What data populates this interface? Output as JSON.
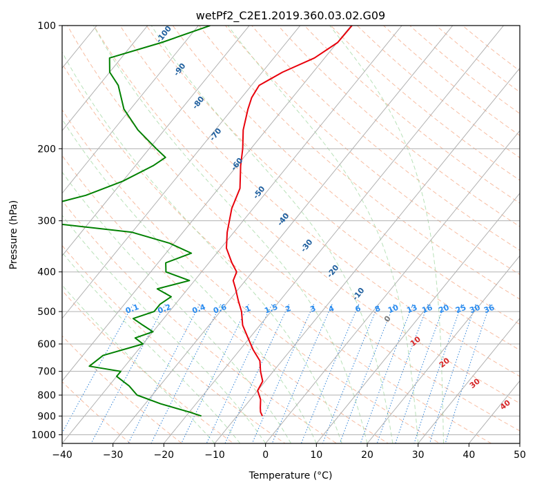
{
  "chart_data": {
    "type": "line",
    "title": "wetPf2_C2E1.2019.360.03.02.G09",
    "xlabel": "Temperature (°C)",
    "ylabel": "Pressure (hPa)",
    "xlim": [
      -40,
      50
    ],
    "ylim": [
      1050,
      100
    ],
    "y_scale": "log",
    "x_ticks": [
      -40,
      -30,
      -20,
      -10,
      0,
      10,
      20,
      30,
      40,
      50
    ],
    "x_tick_labels": [
      "−40",
      "−30",
      "−20",
      "−10",
      "0",
      "10",
      "20",
      "30",
      "40",
      "50"
    ],
    "y_ticks": [
      100,
      200,
      300,
      400,
      500,
      600,
      700,
      800,
      900,
      1000
    ],
    "y_tick_labels": [
      "100",
      "200",
      "300",
      "400",
      "500",
      "600",
      "700",
      "800",
      "900",
      "1000"
    ],
    "grid": true,
    "colors": {
      "temperature": "#e8000b",
      "dewpoint": "#008000",
      "isotherm": "#b0b0b0",
      "dry_adiabat": "#f4a582",
      "moist_adiabat": "#a6d9a6",
      "mixing_ratio": "#1f78d4",
      "isotherm_label": "#1f5f9e",
      "dry_label": "#d62728",
      "mixing_label": "#2a8cf0"
    },
    "series": [
      {
        "key": "temperature",
        "p": [
          100,
          110,
          120,
          130,
          140,
          150,
          160,
          180,
          200,
          220,
          250,
          280,
          320,
          350,
          380,
          400,
          420,
          440,
          470,
          500,
          540,
          580,
          620,
          660,
          700,
          740,
          780,
          820,
          860,
          880,
          900
        ],
        "t": [
          -49.8,
          -49.9,
          -52.0,
          -56.0,
          -58.5,
          -58.0,
          -56.9,
          -54.5,
          -51.6,
          -49.3,
          -45.8,
          -44.2,
          -41.3,
          -38.9,
          -35.5,
          -33.1,
          -32.4,
          -30.6,
          -28.2,
          -25.8,
          -23.4,
          -20.3,
          -17.4,
          -14.3,
          -12.5,
          -10.5,
          -10.0,
          -8.0,
          -6.7,
          -6.0,
          -5.0
        ]
      },
      {
        "key": "dewpoint",
        "p": [
          100,
          110,
          120,
          130,
          140,
          160,
          180,
          200,
          210,
          220,
          240,
          260,
          280,
          300,
          320,
          340,
          360,
          380,
          400,
          420,
          440,
          460,
          480,
          500,
          520,
          540,
          560,
          580,
          600,
          640,
          680,
          700,
          720,
          760,
          800,
          840,
          880,
          900
        ],
        "t": [
          -77.7,
          -84.5,
          -92.3,
          -90.0,
          -86.2,
          -81.3,
          -75.2,
          -68.6,
          -65.4,
          -66.5,
          -70.0,
          -75.0,
          -82.9,
          -81.8,
          -60.0,
          -51.0,
          -45.0,
          -48.5,
          -47.0,
          -41.0,
          -46.0,
          -42.0,
          -43.0,
          -43.0,
          -46.0,
          -43.0,
          -40.0,
          -42.5,
          -40.0,
          -46.0,
          -47.0,
          -40.0,
          -40.0,
          -36.0,
          -33.0,
          -27.0,
          -20.0,
          -17.0
        ]
      }
    ],
    "isotherm_label_values": [
      -100,
      -90,
      -80,
      -70,
      -60,
      -50,
      -40,
      -30,
      -20,
      -10,
      0
    ],
    "isotherm_label_texts": [
      "-100",
      "-90",
      "-80",
      "-70",
      "-60",
      "-50",
      "-40",
      "-30",
      "-20",
      "-10",
      "0"
    ],
    "dry_adiabat_label_values": [
      10,
      20,
      30,
      40
    ],
    "dry_adiabat_label_texts": [
      "10",
      "20",
      "30",
      "40"
    ],
    "mixing_ratio_values": [
      0.1,
      0.2,
      0.4,
      0.6,
      1,
      1.5,
      2,
      3,
      4,
      6,
      8,
      10,
      13,
      16,
      20,
      25,
      30,
      36
    ],
    "mixing_ratio_label_texts": [
      "0.1",
      "0.2",
      "0.4",
      "0.6",
      "1",
      "1.5",
      "2",
      "3",
      "4",
      "6",
      "8",
      "10",
      "13",
      "16",
      "20",
      "25",
      "30",
      "36"
    ],
    "mixing_ratio_label_pressure": 480
  }
}
